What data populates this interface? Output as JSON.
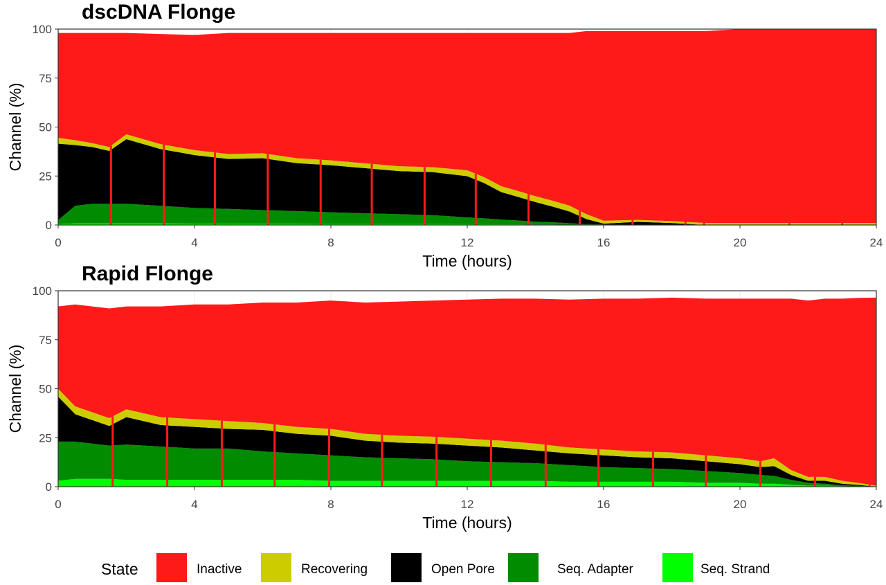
{
  "chart_data": [
    {
      "type": "area",
      "title": "dscDNA Flonge",
      "xlabel": "Time (hours)",
      "ylabel": "Channel (%)",
      "xlim": [
        0,
        24
      ],
      "ylim": [
        0,
        100
      ],
      "xticks": [
        0,
        4,
        8,
        12,
        16,
        20,
        24
      ],
      "yticks": [
        0,
        25,
        50,
        75,
        100
      ],
      "grid": true,
      "stacked": true,
      "segment_starts": [
        0,
        1.55,
        3.1,
        4.6,
        6.15,
        7.7,
        9.2,
        10.75,
        12.25,
        13.8,
        15.3,
        16.85,
        18.4,
        18.95,
        21.45,
        23.0
      ],
      "x": [
        0,
        0.5,
        1.0,
        1.5,
        2.0,
        3.0,
        4.0,
        5.0,
        6.0,
        7.0,
        8.0,
        9.0,
        10.0,
        11.0,
        12.0,
        12.5,
        13.0,
        13.5,
        14.0,
        14.5,
        15.0,
        15.5,
        16.0,
        17.0,
        18.0,
        19.0,
        20.0,
        21.0,
        22.0,
        23.0,
        24.0
      ],
      "series": [
        {
          "name": "Seq. Strand",
          "values": [
            0.5,
            0.8,
            0.8,
            0.8,
            0.8,
            0.8,
            0.7,
            0.7,
            0.6,
            0.6,
            0.5,
            0.5,
            0.5,
            0.5,
            0.4,
            0.4,
            0.3,
            0.3,
            0.2,
            0.2,
            0.1,
            0.1,
            0,
            0,
            0,
            0,
            0,
            0,
            0,
            0,
            0
          ]
        },
        {
          "name": "Seq. Adapter",
          "values": [
            2,
            9,
            10,
            10,
            10,
            9,
            8,
            7.5,
            7,
            6.5,
            6,
            5.5,
            5,
            4.5,
            3.5,
            3,
            2.5,
            2,
            1.5,
            1.2,
            0.8,
            0.4,
            0.2,
            0.1,
            0,
            0,
            0,
            0,
            0,
            0,
            0
          ]
        },
        {
          "name": "Open Pore",
          "values": [
            39,
            31,
            29,
            27,
            33,
            29,
            27,
            25.5,
            26.5,
            24.5,
            24,
            23,
            22,
            22,
            21,
            18,
            14,
            12,
            10,
            8,
            6,
            2.5,
            0.5,
            1.5,
            1,
            0,
            0,
            0,
            0,
            0,
            0
          ]
        },
        {
          "name": "Recovering",
          "values": [
            3,
            2.5,
            2,
            2,
            2.5,
            2.5,
            2.5,
            2.5,
            2.5,
            2.5,
            2.5,
            2.5,
            2.5,
            2.5,
            3,
            3,
            3,
            3,
            3,
            3,
            3,
            2.5,
            1.5,
            1,
            1,
            1,
            1,
            1,
            1,
            1,
            1
          ]
        },
        {
          "name": "Inactive",
          "values": [
            53.5,
            54.7,
            56.2,
            58.2,
            51.7,
            56.2,
            58.8,
            61.8,
            61.4,
            63.9,
            65,
            66.5,
            68,
            68.5,
            70.1,
            73.6,
            78.2,
            80.7,
            83.3,
            85.6,
            88.1,
            93.5,
            96.8,
            96.4,
            97,
            98,
            99,
            99,
            99,
            99,
            99
          ]
        }
      ]
    },
    {
      "type": "area",
      "title": "Rapid Flonge",
      "xlabel": "Time (hours)",
      "ylabel": "Channel (%)",
      "xlim": [
        0,
        24
      ],
      "ylim": [
        0,
        100
      ],
      "xticks": [
        0,
        4,
        8,
        12,
        16,
        20,
        24
      ],
      "yticks": [
        0,
        25,
        50,
        75,
        100
      ],
      "grid": true,
      "stacked": true,
      "segment_starts": [
        0,
        1.6,
        3.2,
        4.8,
        6.35,
        7.95,
        9.5,
        11.1,
        12.7,
        14.3,
        15.85,
        17.45,
        19.0,
        20.6,
        22.2,
        23.8
      ],
      "x": [
        0,
        0.5,
        1.0,
        1.5,
        2.0,
        3.0,
        4.0,
        5.0,
        6.0,
        7.0,
        8.0,
        9.0,
        10.0,
        11.0,
        12.0,
        13.0,
        14.0,
        15.0,
        16.0,
        17.0,
        18.0,
        19.0,
        20.0,
        20.6,
        21.0,
        21.5,
        22.0,
        22.5,
        23.0,
        23.5,
        24.0
      ],
      "series": [
        {
          "name": "Seq. Strand",
          "values": [
            3,
            4,
            4,
            4,
            3.5,
            3.5,
            3.5,
            3.5,
            3.5,
            3.5,
            3,
            3,
            3,
            3,
            3,
            3,
            3,
            2.5,
            2.5,
            2.5,
            2.5,
            2,
            2,
            1.5,
            1.5,
            1,
            0.5,
            0.5,
            0.2,
            0.1,
            0
          ]
        },
        {
          "name": "Seq. Adapter",
          "values": [
            20,
            19,
            18,
            17,
            18,
            17,
            16,
            16,
            14.5,
            13.5,
            13,
            12,
            11.5,
            11,
            10,
            9.5,
            9,
            8.5,
            7.5,
            7,
            6.5,
            6,
            5,
            4.5,
            4,
            2.5,
            1.5,
            1,
            0.5,
            0.3,
            0
          ]
        },
        {
          "name": "Open Pore",
          "values": [
            23,
            14,
            12,
            10,
            14,
            11,
            11,
            10,
            11,
            10,
            10,
            8.5,
            8,
            8,
            8,
            7.5,
            6.5,
            6,
            6,
            5.5,
            5.5,
            5,
            4.5,
            4,
            5,
            2.5,
            1,
            1.5,
            0.8,
            0.5,
            0
          ]
        },
        {
          "name": "Recovering",
          "values": [
            4,
            4,
            4,
            4,
            4,
            4,
            4,
            4,
            3.5,
            3.5,
            3.5,
            3.5,
            3.5,
            3.5,
            3.5,
            3.5,
            3.5,
            3,
            3,
            3,
            3,
            3,
            3,
            3,
            4,
            2.5,
            2,
            2,
            1.5,
            1,
            0.5
          ]
        },
        {
          "name": "Inactive",
          "values": [
            42,
            52,
            54,
            56,
            52.5,
            56.5,
            58.5,
            59.5,
            61.5,
            63.5,
            65.5,
            67,
            68.5,
            69.5,
            71,
            72.5,
            74,
            75.5,
            77,
            78,
            79,
            80,
            81.5,
            83,
            81.5,
            87.5,
            90,
            91,
            93,
            94.5,
            96
          ]
        }
      ]
    }
  ],
  "colors": {
    "Inactive": "#ff1a1a",
    "Recovering": "#cccc00",
    "Open Pore": "#000000",
    "Seq. Adapter": "#008b00",
    "Seq. Strand": "#00ff00"
  },
  "legend": {
    "title": "State",
    "position": "bottom",
    "items": [
      "Inactive",
      "Recovering",
      "Open Pore",
      "Seq. Adapter",
      "Seq. Strand"
    ]
  }
}
